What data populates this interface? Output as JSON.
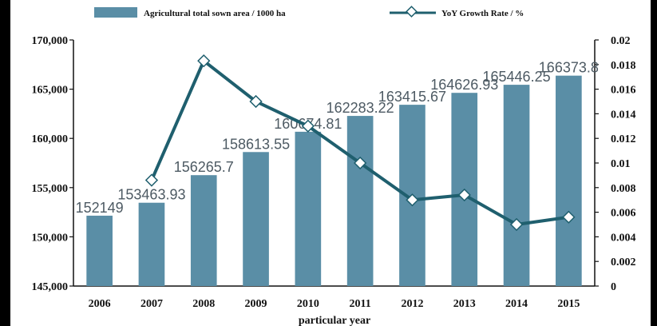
{
  "chart_data": {
    "type": "bar+line",
    "categories": [
      "2006",
      "2007",
      "2008",
      "2009",
      "2010",
      "2011",
      "2012",
      "2013",
      "2014",
      "2015"
    ],
    "series": [
      {
        "name": "Agricultural total sown area / 1000 ha",
        "type": "bar",
        "axis": "left",
        "values": [
          152149,
          153463.93,
          156265.7,
          158613.55,
          160674.81,
          162283.22,
          163415.67,
          164626.93,
          165446.25,
          166373.8
        ],
        "labels": [
          "152149",
          "153463.93",
          "156265.7",
          "158613.55",
          "160674.81",
          "162283.22",
          "163415.67",
          "164626.93",
          "165446.25",
          "166373.8"
        ]
      },
      {
        "name": "YoY Growth Rate / %",
        "type": "line",
        "axis": "right",
        "values": [
          null,
          0.0086,
          0.0183,
          0.015,
          0.013,
          0.01,
          0.007,
          0.0074,
          0.005,
          0.0056
        ]
      }
    ],
    "xlabel": "particular year",
    "ylim_left": [
      145000,
      170000
    ],
    "yticks_left": [
      "145,000",
      "150,000",
      "155,000",
      "160,000",
      "165,000",
      "170,000"
    ],
    "ylim_right": [
      0,
      0.02
    ],
    "yticks_right": [
      "0",
      "0.002",
      "0.004",
      "0.006",
      "0.008",
      "0.01",
      "0.012",
      "0.014",
      "0.016",
      "0.018",
      "0.02"
    ],
    "legend_position": "top",
    "grid": false,
    "colors": {
      "bar": "#5a8ea6",
      "line": "#1f5f6e",
      "marker_fill": "#ffffff",
      "data_label": "#4d5a63"
    }
  }
}
